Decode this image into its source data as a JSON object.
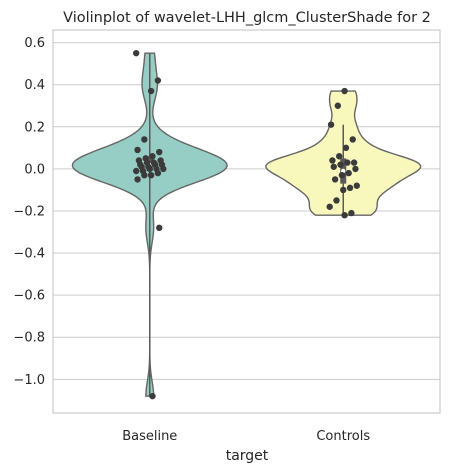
{
  "chart_data": {
    "type": "violin",
    "title": "Violinplot of wavelet-LHH_glcm_ClusterShade for 2",
    "xlabel": "target",
    "ylabel": "",
    "ylim": [
      -1.16,
      0.66
    ],
    "yticks": [
      -1.0,
      -0.8,
      -0.6,
      -0.4,
      -0.2,
      0.0,
      0.2,
      0.4,
      0.6
    ],
    "ytick_labels": [
      "−1.0",
      "−0.8",
      "−0.6",
      "−0.4",
      "−0.2",
      "0.0",
      "0.2",
      "0.4",
      "0.6"
    ],
    "categories": [
      "Baseline",
      "Controls"
    ],
    "grid": "horizontal",
    "colors": {
      "Baseline": "#96cdc4",
      "Controls": "#f8f7bc",
      "outline": "#666666",
      "points": "#3b3b3b",
      "grid": "#cccccc",
      "box": "#5a5a5a"
    },
    "series": [
      {
        "category": "Baseline",
        "values": [
          0.55,
          0.42,
          0.37,
          0.14,
          0.09,
          0.08,
          0.06,
          0.05,
          0.04,
          0.04,
          0.03,
          0.03,
          0.02,
          0.02,
          0.02,
          0.01,
          0.01,
          0.0,
          0.0,
          0.0,
          -0.01,
          -0.01,
          -0.02,
          -0.03,
          -0.03,
          -0.05,
          -0.28,
          -1.08
        ],
        "box": {
          "q1": -0.01,
          "median": 0.02,
          "q3": 0.06,
          "whisker_low": -1.08,
          "whisker_high": 0.55
        }
      },
      {
        "category": "Controls",
        "values": [
          0.37,
          0.3,
          0.21,
          0.14,
          0.1,
          0.06,
          0.04,
          0.03,
          0.03,
          0.02,
          0.01,
          0.0,
          -0.02,
          -0.03,
          -0.05,
          -0.08,
          -0.09,
          -0.1,
          -0.15,
          -0.18,
          -0.21,
          -0.22
        ],
        "box": {
          "q1": -0.07,
          "median": -0.01,
          "q3": 0.05,
          "whisker_low": -0.22,
          "whisker_high": 0.21
        }
      }
    ]
  }
}
